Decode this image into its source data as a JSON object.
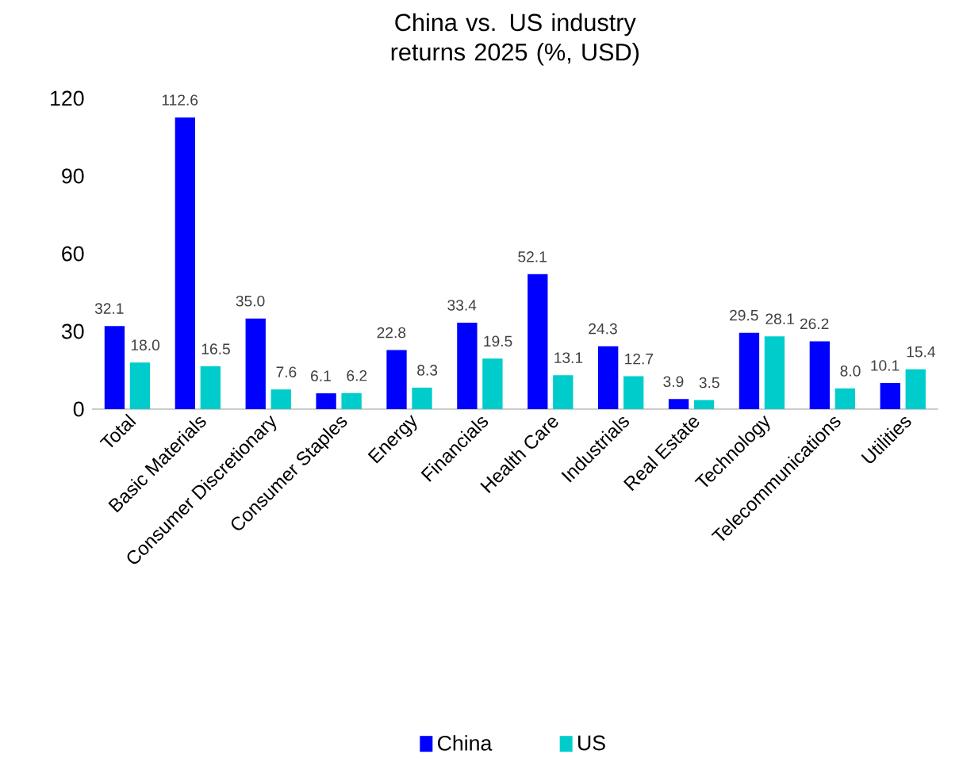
{
  "chart_data": {
    "type": "bar",
    "title": "China vs. US industry returns 2025 (%, USD)",
    "categories": [
      "Total",
      "Basic Materials",
      "Consumer Discretionary",
      "Consumer Staples",
      "Energy",
      "Financials",
      "Health Care",
      "Industrials",
      "Real Estate",
      "Technology",
      "Telecommunications",
      "Utilities"
    ],
    "series": [
      {
        "name": "China",
        "color": "#0000ff",
        "values": [
          32.1,
          112.6,
          35.0,
          6.1,
          22.8,
          33.4,
          52.1,
          24.3,
          3.9,
          29.5,
          26.2,
          10.1
        ],
        "value_labels": [
          "32.1",
          "112.6",
          "35.0",
          "6.1",
          "22.8",
          "33.4",
          "52.1",
          "24.3",
          "3.9",
          "29.5",
          "26.2",
          "10.1"
        ]
      },
      {
        "name": "US",
        "color": "#00cccc",
        "values": [
          18.0,
          16.5,
          7.6,
          6.2,
          8.3,
          19.5,
          13.1,
          12.7,
          3.5,
          28.1,
          8.0,
          15.4
        ],
        "value_labels": [
          "18.0",
          "16.5",
          "7.6",
          "6.2",
          "8.3",
          "19.5",
          "13.1",
          "12.7",
          "3.5",
          "28.1",
          "8.0",
          "15.4"
        ]
      }
    ],
    "ylim": [
      0,
      120
    ],
    "yticks": [
      0,
      30,
      60,
      90,
      120
    ],
    "grid": false,
    "legend": "bottom"
  }
}
